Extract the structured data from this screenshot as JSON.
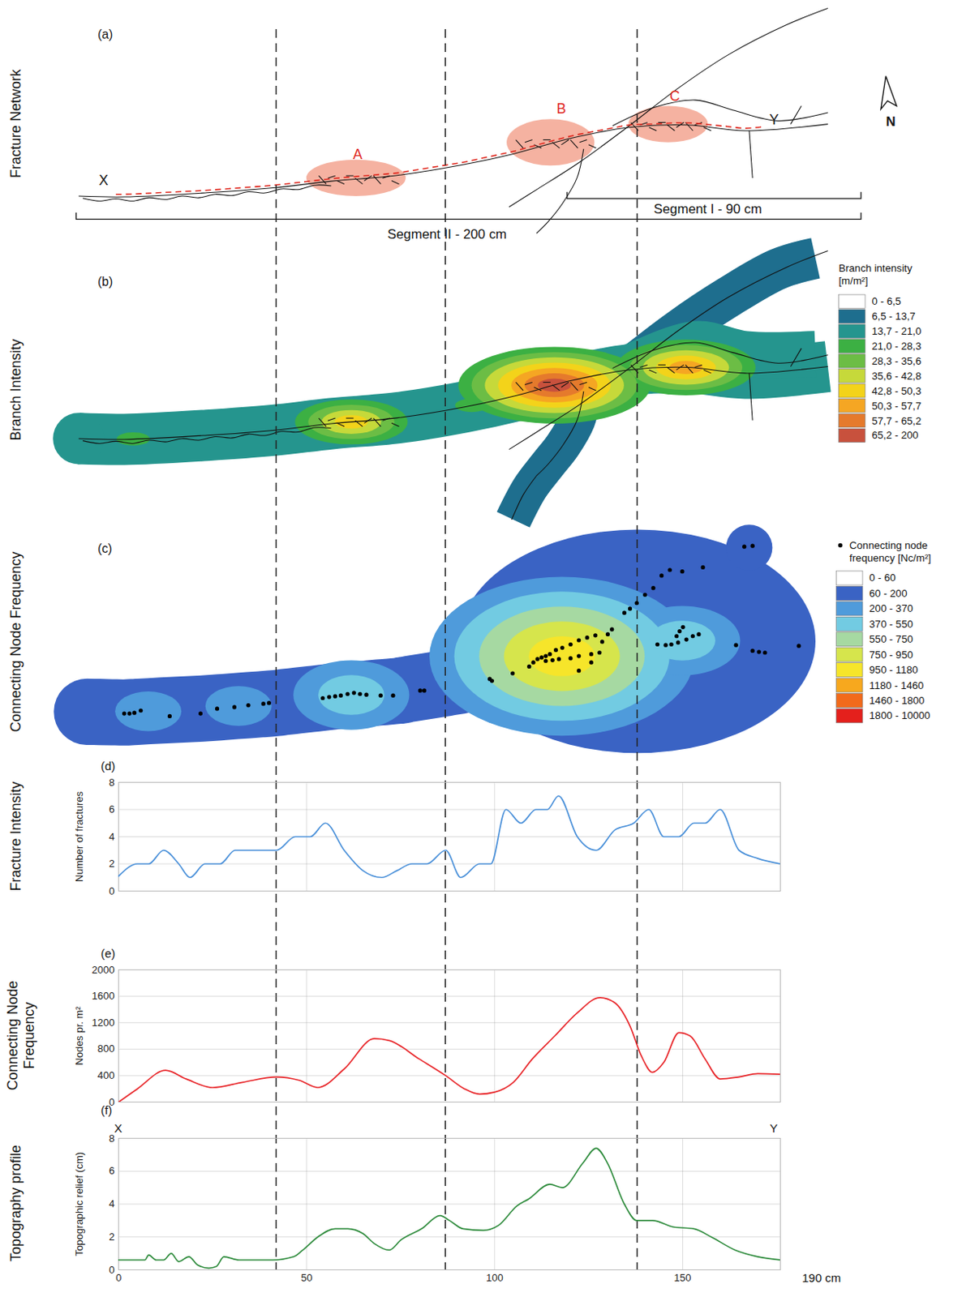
{
  "reference_lines_x": [
    42,
    87,
    138
  ],
  "chart_data": [
    {
      "type": "map",
      "panel_label": "(a)",
      "title": "Fracture Network",
      "annotations": [
        "A",
        "B",
        "C",
        "X",
        "Y"
      ],
      "segment_labels": [
        "Segment I - 90 cm",
        "Segment II - 200 cm"
      ],
      "north_label": "N"
    },
    {
      "type": "heatmap",
      "panel_label": "(b)",
      "title": "Branch Intensity",
      "legend_title": "Branch intensity [m/m²]",
      "classes": [
        {
          "from": 0,
          "to": 6.5,
          "label": "0 - 6,5",
          "color": "#ffffff"
        },
        {
          "from": 6.5,
          "to": 13.7,
          "label": "6,5 - 13,7",
          "color": "#1e6e8e"
        },
        {
          "from": 13.7,
          "to": 21.0,
          "label": "13,7 - 21,0",
          "color": "#25958e"
        },
        {
          "from": 21.0,
          "to": 28.3,
          "label": "21,0 - 28,3",
          "color": "#3cb043"
        },
        {
          "from": 28.3,
          "to": 35.6,
          "label": "28,3 - 35,6",
          "color": "#6cbd45"
        },
        {
          "from": 35.6,
          "to": 42.8,
          "label": "35,6 - 42,8",
          "color": "#c6d93a"
        },
        {
          "from": 42.8,
          "to": 50.3,
          "label": "42,8 - 50,3",
          "color": "#f3d31a"
        },
        {
          "from": 50.3,
          "to": 57.7,
          "label": "50,3 - 57,7",
          "color": "#f5a623"
        },
        {
          "from": 57.7,
          "to": 65.2,
          "label": "57,7 - 65,2",
          "color": "#e57a2c"
        },
        {
          "from": 65.2,
          "to": 200,
          "label": "65,2 - 200",
          "color": "#c8513d"
        }
      ],
      "background_value": 18,
      "branch_value": 10,
      "hotspots": [
        {
          "x": 4,
          "value": 24
        },
        {
          "x": 62,
          "value": 46
        },
        {
          "x": 94,
          "value": 24
        },
        {
          "x": 116,
          "value": 70
        },
        {
          "x": 151,
          "value": 55
        }
      ]
    },
    {
      "type": "heatmap",
      "panel_label": "(c)",
      "title": "Connecting Node Frequency",
      "legend_title": "Connecting node frequency [Nc/m²]",
      "classes": [
        {
          "from": 0,
          "to": 60,
          "label": "0 - 60",
          "color": "#ffffff"
        },
        {
          "from": 60,
          "to": 200,
          "label": "60 - 200",
          "color": "#3a63c4"
        },
        {
          "from": 200,
          "to": 370,
          "label": "200 - 370",
          "color": "#4f9bdb"
        },
        {
          "from": 370,
          "to": 550,
          "label": "370 - 550",
          "color": "#72cbe2"
        },
        {
          "from": 550,
          "to": 750,
          "label": "550 - 750",
          "color": "#a6d9a2"
        },
        {
          "from": 750,
          "to": 950,
          "label": "750 - 950",
          "color": "#d6e54c"
        },
        {
          "from": 950,
          "to": 1180,
          "label": "950 - 1180",
          "color": "#f6e52a"
        },
        {
          "from": 1180,
          "to": 1460,
          "label": "1180 - 1460",
          "color": "#f7a81e"
        },
        {
          "from": 1460,
          "to": 1800,
          "label": "1460 - 1800",
          "color": "#f26a1b"
        },
        {
          "from": 1800,
          "to": 10000,
          "label": "1800 - 10000",
          "color": "#e4201c"
        }
      ],
      "background_value": 130,
      "hotspots": [
        {
          "x": 8,
          "value": 300
        },
        {
          "x": 32,
          "value": 280
        },
        {
          "x": 62,
          "value": 450
        },
        {
          "x": 118,
          "value": 1000
        },
        {
          "x": 150,
          "value": 450
        }
      ],
      "nodes": {
        "x": [
          1.5,
          2.9,
          4.2,
          5.9,
          13.6,
          21.8,
          26.2,
          30.8,
          34.5,
          38.5,
          40.0,
          54.3,
          56.0,
          57.6,
          59.1,
          60.9,
          62.6,
          64.2,
          65.9,
          69.7,
          73.0,
          80.2,
          81.3,
          98.7,
          99.3,
          104.8,
          109.2,
          110.3,
          111.4,
          112.5,
          113.6,
          114.7,
          116.3,
          118.0,
          120.2,
          122.4,
          124.6,
          126.8,
          130.1,
          113.6,
          115.4,
          117.1,
          120.2,
          122.4,
          125.7,
          127.9,
          122.4,
          125.7,
          128.6,
          131.2,
          134.5,
          136.0,
          137.8,
          140.0,
          142.2,
          144.4,
          146.6,
          149.9,
          155.4,
          143.3,
          145.5,
          147.0,
          148.8,
          151.0,
          152.7,
          154.3,
          148.4,
          149.2,
          150.1,
          164.2,
          168.6,
          170.3,
          171.9,
          180.9,
          166.4,
          168.6
        ],
        "y": [
          1.8,
          1.8,
          2.0,
          2.6,
          1.1,
          1.8,
          3.1,
          3.5,
          4.0,
          4.4,
          4.6,
          5.9,
          6.2,
          6.4,
          6.6,
          7.0,
          7.3,
          7.0,
          6.8,
          6.6,
          6.6,
          7.9,
          7.9,
          11.0,
          10.5,
          12.5,
          14.3,
          15.4,
          16.3,
          16.7,
          17.1,
          17.6,
          18.7,
          19.3,
          20.2,
          21.3,
          22.0,
          22.6,
          22.9,
          15.8,
          16.0,
          16.3,
          16.5,
          17.1,
          17.6,
          18.0,
          13.2,
          15.4,
          20.9,
          24.2,
          28.6,
          29.7,
          31.2,
          33.4,
          35.2,
          38.5,
          40.0,
          39.6,
          40.7,
          20.2,
          20.0,
          20.2,
          20.7,
          21.5,
          22.4,
          22.9,
          22.4,
          23.7,
          24.8,
          20.0,
          18.5,
          18.2,
          18.0,
          19.8,
          46.2,
          46.4
        ]
      }
    },
    {
      "type": "line",
      "panel_label": "(d)",
      "title": "Fracture Intensity",
      "y_label": "Number of fractures",
      "x": [
        0,
        5,
        8,
        12,
        16,
        19,
        23,
        27,
        31,
        36,
        42,
        47,
        51,
        55,
        60,
        65,
        70,
        74,
        78,
        82,
        87,
        91,
        96,
        99,
        103,
        107,
        111,
        114,
        117,
        122,
        127,
        132,
        137,
        141,
        145,
        149,
        153,
        156,
        160,
        165,
        170,
        176
      ],
      "values": [
        1.1,
        2,
        2,
        3,
        2,
        1,
        2,
        2,
        3,
        3,
        3,
        4,
        4,
        5,
        3,
        1.5,
        1,
        1.5,
        2,
        2,
        3,
        1,
        2,
        2,
        6,
        5,
        6,
        6,
        7,
        4,
        3,
        4.5,
        5,
        6,
        4,
        4,
        5,
        5,
        6,
        3,
        2.4,
        2
      ],
      "color": "#4a90d9",
      "xlim": [
        0,
        176
      ],
      "xticks": [
        0,
        50,
        100,
        150
      ],
      "ylim": [
        0,
        8
      ],
      "yticks": [
        0,
        2,
        4,
        6,
        8
      ],
      "grid": true,
      "tick_labels": "y"
    },
    {
      "type": "line",
      "panel_label": "(e)",
      "title": "Connecting Node Frequency",
      "y_label": "Nodes pr. m²",
      "x": [
        0,
        5,
        12.5,
        18,
        25,
        33,
        42,
        48,
        53,
        60,
        68,
        72,
        80,
        87,
        92,
        96,
        100,
        105,
        110,
        116,
        122,
        128,
        132,
        136,
        139,
        142,
        145,
        149,
        152,
        156,
        160,
        165,
        170,
        176
      ],
      "values": [
        0,
        200,
        480,
        350,
        220,
        300,
        380,
        330,
        220,
        500,
        960,
        930,
        650,
        400,
        200,
        120,
        150,
        300,
        650,
        1000,
        1350,
        1580,
        1500,
        1150,
        700,
        450,
        600,
        1050,
        1000,
        650,
        350,
        380,
        430,
        420
      ],
      "color": "#e8262a",
      "xlim": [
        0,
        176
      ],
      "xticks": [
        0,
        50,
        100,
        150
      ],
      "ylim": [
        0,
        2000
      ],
      "yticks": [
        0,
        400,
        800,
        1200,
        1600,
        2000
      ],
      "grid": true,
      "tick_labels": "y"
    },
    {
      "type": "line",
      "panel_label": "(f)",
      "title": "Topography profile",
      "y_label": "Topographic relief (cm)",
      "annotations": [
        "X",
        "Y",
        "190 cm"
      ],
      "x": [
        0,
        3,
        7,
        8,
        10,
        12,
        14,
        16,
        18.7,
        21,
        24,
        26,
        28,
        32,
        36,
        41,
        46.6,
        49,
        53,
        57.6,
        61,
        65,
        68,
        72,
        75,
        80.6,
        85.5,
        88,
        91.6,
        97,
        101,
        106,
        109,
        114.7,
        118,
        123.5,
        127,
        130,
        134.5,
        137.8,
        142,
        147.7,
        153,
        157.6,
        164,
        170,
        176
      ],
      "values": [
        0.6,
        0.6,
        0.6,
        0.9,
        0.6,
        0.6,
        1.0,
        0.5,
        0.8,
        0.3,
        0.1,
        0.2,
        0.8,
        0.6,
        0.6,
        0.6,
        0.8,
        1.2,
        2.0,
        2.5,
        2.5,
        2.2,
        1.6,
        1.2,
        1.8,
        2.5,
        3.3,
        3.0,
        2.5,
        2.4,
        2.7,
        3.9,
        4.3,
        5.2,
        5.0,
        6.5,
        7.4,
        6.5,
        4.0,
        3.0,
        3.0,
        2.6,
        2.5,
        2.0,
        1.2,
        0.8,
        0.6
      ],
      "color": "#2e8b3c",
      "xlim": [
        0,
        176
      ],
      "xticks": [
        0,
        50,
        100,
        150
      ],
      "ylim": [
        0,
        8
      ],
      "yticks": [
        0,
        2,
        4,
        6,
        8
      ],
      "grid": true,
      "tick_labels": true
    }
  ]
}
